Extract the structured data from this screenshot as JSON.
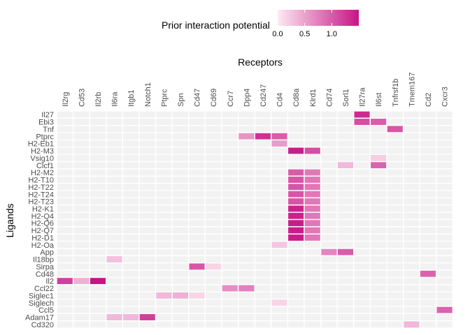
{
  "chart_data": {
    "type": "heatmap",
    "xlabel": "Receptors",
    "ylabel": "Ligands",
    "legend": {
      "title": "Prior interaction potential",
      "placement": "top",
      "ticks": [
        0.0,
        0.5,
        1.0
      ],
      "tick_labels": [
        "0.0",
        "0.5",
        "1.0"
      ],
      "range": [
        0,
        1.5
      ],
      "low_color": "#fde9f2",
      "high_color": "#c71585"
    },
    "empty_color": "#f2f2f2",
    "grid_color": "#ffffff",
    "receptors": [
      "Il2rg",
      "Cd53",
      "Il2rb",
      "Il6ra",
      "Itgb1",
      "Notch1",
      "Ptprc",
      "Spn",
      "Cd47",
      "Cd69",
      "Ccr7",
      "Dpp4",
      "Cd247",
      "Cd4",
      "Cd8a",
      "Klrd1",
      "Cd74",
      "Sorl1",
      "Il27ra",
      "Il6st",
      "Tnfrsf1b",
      "Tmem167",
      "Cd2",
      "Cxcr3"
    ],
    "ligands": [
      "Il27",
      "Ebi3",
      "Tnf",
      "Ptprc",
      "H2-Eb1",
      "H2-M3",
      "Vsig10",
      "Clcf1",
      "H2-M2",
      "H2-T10",
      "H2-T22",
      "H2-T24",
      "H2-T23",
      "H2-K1",
      "H2-Q4",
      "H2-Q6",
      "H2-Q7",
      "H2-D1",
      "H2-Oa",
      "App",
      "Il18bp",
      "Sirpa",
      "Cd48",
      "Il2",
      "Ccl22",
      "Siglec1",
      "Siglech",
      "Ccl5",
      "Adam17",
      "Cd320"
    ],
    "cells": [
      {
        "ligand": "Il27",
        "receptor": "Il27ra",
        "value": 1.35
      },
      {
        "ligand": "Ebi3",
        "receptor": "Il27ra",
        "value": 1.1
      },
      {
        "ligand": "Ebi3",
        "receptor": "Il6st",
        "value": 1.0
      },
      {
        "ligand": "Tnf",
        "receptor": "Tnfrsf1b",
        "value": 1.05
      },
      {
        "ligand": "Ptprc",
        "receptor": "Dpp4",
        "value": 0.6
      },
      {
        "ligand": "Ptprc",
        "receptor": "Cd247",
        "value": 1.3
      },
      {
        "ligand": "Ptprc",
        "receptor": "Cd4",
        "value": 1.0
      },
      {
        "ligand": "H2-Eb1",
        "receptor": "Cd4",
        "value": 0.55
      },
      {
        "ligand": "H2-M3",
        "receptor": "Cd8a",
        "value": 1.45
      },
      {
        "ligand": "H2-M3",
        "receptor": "Klrd1",
        "value": 1.1
      },
      {
        "ligand": "Vsig10",
        "receptor": "Il6st",
        "value": 0.2
      },
      {
        "ligand": "Clcf1",
        "receptor": "Sorl1",
        "value": 0.35
      },
      {
        "ligand": "Clcf1",
        "receptor": "Il6st",
        "value": 0.95
      },
      {
        "ligand": "H2-M2",
        "receptor": "Cd8a",
        "value": 1.0
      },
      {
        "ligand": "H2-M2",
        "receptor": "Klrd1",
        "value": 0.8
      },
      {
        "ligand": "H2-T10",
        "receptor": "Cd8a",
        "value": 1.05
      },
      {
        "ligand": "H2-T10",
        "receptor": "Klrd1",
        "value": 0.8
      },
      {
        "ligand": "H2-T22",
        "receptor": "Cd8a",
        "value": 1.05
      },
      {
        "ligand": "H2-T22",
        "receptor": "Klrd1",
        "value": 0.8
      },
      {
        "ligand": "H2-T24",
        "receptor": "Cd8a",
        "value": 1.05
      },
      {
        "ligand": "H2-T24",
        "receptor": "Klrd1",
        "value": 0.8
      },
      {
        "ligand": "H2-T23",
        "receptor": "Cd8a",
        "value": 1.05
      },
      {
        "ligand": "H2-T23",
        "receptor": "Klrd1",
        "value": 0.8
      },
      {
        "ligand": "H2-K1",
        "receptor": "Cd8a",
        "value": 1.4
      },
      {
        "ligand": "H2-K1",
        "receptor": "Klrd1",
        "value": 0.8
      },
      {
        "ligand": "H2-Q4",
        "receptor": "Cd8a",
        "value": 1.4
      },
      {
        "ligand": "H2-Q4",
        "receptor": "Klrd1",
        "value": 0.8
      },
      {
        "ligand": "H2-Q6",
        "receptor": "Cd8a",
        "value": 1.45
      },
      {
        "ligand": "H2-Q6",
        "receptor": "Klrd1",
        "value": 0.8
      },
      {
        "ligand": "H2-Q7",
        "receptor": "Cd8a",
        "value": 1.45
      },
      {
        "ligand": "H2-Q7",
        "receptor": "Klrd1",
        "value": 0.8
      },
      {
        "ligand": "H2-D1",
        "receptor": "Cd8a",
        "value": 1.45
      },
      {
        "ligand": "H2-D1",
        "receptor": "Klrd1",
        "value": 0.8
      },
      {
        "ligand": "H2-Oa",
        "receptor": "Cd4",
        "value": 0.25
      },
      {
        "ligand": "App",
        "receptor": "Cd74",
        "value": 0.7
      },
      {
        "ligand": "App",
        "receptor": "Sorl1",
        "value": 1.0
      },
      {
        "ligand": "Il18bp",
        "receptor": "Il6ra",
        "value": 0.3
      },
      {
        "ligand": "Sirpa",
        "receptor": "Cd47",
        "value": 1.05
      },
      {
        "ligand": "Sirpa",
        "receptor": "Cd69",
        "value": 0.15
      },
      {
        "ligand": "Cd48",
        "receptor": "Cd2",
        "value": 0.95
      },
      {
        "ligand": "Il2",
        "receptor": "Il2rg",
        "value": 1.2
      },
      {
        "ligand": "Il2",
        "receptor": "Cd53",
        "value": 0.4
      },
      {
        "ligand": "Il2",
        "receptor": "Il2rb",
        "value": 1.5
      },
      {
        "ligand": "Ccl22",
        "receptor": "Ccr7",
        "value": 0.65
      },
      {
        "ligand": "Ccl22",
        "receptor": "Dpp4",
        "value": 0.75
      },
      {
        "ligand": "Siglec1",
        "receptor": "Ptprc",
        "value": 0.35
      },
      {
        "ligand": "Siglec1",
        "receptor": "Spn",
        "value": 0.4
      },
      {
        "ligand": "Siglec1",
        "receptor": "Cd47",
        "value": 0.15
      },
      {
        "ligand": "Siglech",
        "receptor": "Cd4",
        "value": 0.15
      },
      {
        "ligand": "Ccl5",
        "receptor": "Cxcr3",
        "value": 0.95
      },
      {
        "ligand": "Adam17",
        "receptor": "Il6ra",
        "value": 0.35
      },
      {
        "ligand": "Adam17",
        "receptor": "Itgb1",
        "value": 0.35
      },
      {
        "ligand": "Adam17",
        "receptor": "Notch1",
        "value": 1.2
      },
      {
        "ligand": "Cd320",
        "receptor": "Tmem167",
        "value": 0.35
      }
    ]
  }
}
